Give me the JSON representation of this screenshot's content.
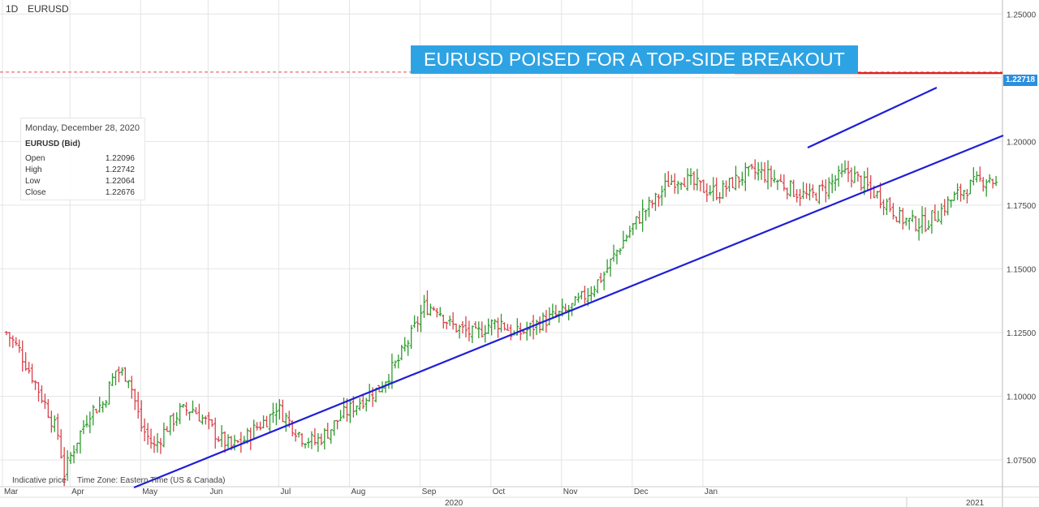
{
  "header": {
    "timeframe": "1D",
    "symbol": "EURUSD"
  },
  "annotation": {
    "banner": "EURUSD POISED FOR A TOP-SIDE BREAKOUT",
    "banner_color": "#2ea3e3"
  },
  "info_panel": {
    "date": "Monday, December 28, 2020",
    "symbol": "EURUSD (Bid)",
    "rows": [
      {
        "label": "Open",
        "value": "1.22096"
      },
      {
        "label": "High",
        "value": "1.22742"
      },
      {
        "label": "Low",
        "value": "1.22064"
      },
      {
        "label": "Close",
        "value": "1.22676"
      }
    ]
  },
  "footer": {
    "note1": "Indicative price",
    "note2": "Time Zone: Eastern Time (US & Canada)"
  },
  "price_tag": "1.22718",
  "colors": {
    "up": "#2f9b2f",
    "down": "#d9424a",
    "trendline": "#1f1fd6",
    "resistance": "#e0201c",
    "grid": "#e4e4e4"
  },
  "chart_data": {
    "type": "ohlc",
    "y_ticks": [
      1.075,
      1.1,
      1.125,
      1.15,
      1.175,
      1.2,
      1.225,
      1.25
    ],
    "y_tick_labels": [
      "1.07500",
      "1.10000",
      "1.12500",
      "1.15000",
      "1.17500",
      "1.20000",
      "1.22500",
      "1.25000"
    ],
    "x_month_labels": [
      "Mar",
      "Apr",
      "May",
      "Jun",
      "Jul",
      "Aug",
      "Sep",
      "Oct",
      "Nov",
      "Dec",
      "Jan"
    ],
    "x_year_labels": [
      "2020",
      "2021"
    ],
    "x_range": [
      0,
      312
    ],
    "y_range": [
      1.0645,
      1.2555
    ],
    "close_path": [
      [
        2,
        1.125
      ],
      [
        6,
        1.118
      ],
      [
        10,
        1.108
      ],
      [
        14,
        1.097
      ],
      [
        18,
        1.085
      ],
      [
        20,
        1.07
      ],
      [
        24,
        1.083
      ],
      [
        28,
        1.094
      ],
      [
        32,
        1.097
      ],
      [
        36,
        1.11
      ],
      [
        40,
        1.108
      ],
      [
        44,
        1.088
      ],
      [
        48,
        1.08
      ],
      [
        52,
        1.088
      ],
      [
        56,
        1.094
      ],
      [
        60,
        1.095
      ],
      [
        64,
        1.09
      ],
      [
        68,
        1.084
      ],
      [
        72,
        1.08
      ],
      [
        76,
        1.083
      ],
      [
        80,
        1.088
      ],
      [
        84,
        1.092
      ],
      [
        86,
        1.096
      ],
      [
        90,
        1.09
      ],
      [
        94,
        1.084
      ],
      [
        98,
        1.082
      ],
      [
        102,
        1.086
      ],
      [
        106,
        1.092
      ],
      [
        110,
        1.096
      ],
      [
        114,
        1.1
      ],
      [
        118,
        1.103
      ],
      [
        120,
        1.107
      ],
      [
        124,
        1.114
      ],
      [
        128,
        1.124
      ],
      [
        132,
        1.135
      ],
      [
        136,
        1.135
      ],
      [
        140,
        1.128
      ],
      [
        144,
        1.126
      ],
      [
        148,
        1.124
      ],
      [
        152,
        1.128
      ],
      [
        156,
        1.129
      ],
      [
        160,
        1.124
      ],
      [
        164,
        1.126
      ],
      [
        168,
        1.129
      ],
      [
        172,
        1.131
      ],
      [
        176,
        1.133
      ],
      [
        180,
        1.137
      ],
      [
        184,
        1.142
      ],
      [
        188,
        1.148
      ],
      [
        192,
        1.157
      ],
      [
        196,
        1.165
      ],
      [
        200,
        1.172
      ],
      [
        204,
        1.177
      ],
      [
        208,
        1.184
      ],
      [
        212,
        1.186
      ],
      [
        216,
        1.183
      ],
      [
        220,
        1.181
      ],
      [
        224,
        1.18
      ],
      [
        228,
        1.184
      ],
      [
        232,
        1.187
      ],
      [
        236,
        1.188
      ],
      [
        240,
        1.186
      ],
      [
        244,
        1.183
      ],
      [
        248,
        1.18
      ],
      [
        252,
        1.178
      ],
      [
        256,
        1.181
      ],
      [
        260,
        1.185
      ],
      [
        264,
        1.188
      ],
      [
        268,
        1.184
      ],
      [
        272,
        1.18
      ],
      [
        276,
        1.176
      ],
      [
        280,
        1.17
      ],
      [
        284,
        1.168
      ],
      [
        288,
        1.168
      ],
      [
        292,
        1.172
      ],
      [
        296,
        1.177
      ],
      [
        300,
        1.181
      ],
      [
        304,
        1.184
      ],
      [
        308,
        1.186
      ],
      [
        310,
        1.183
      ]
    ]
  }
}
